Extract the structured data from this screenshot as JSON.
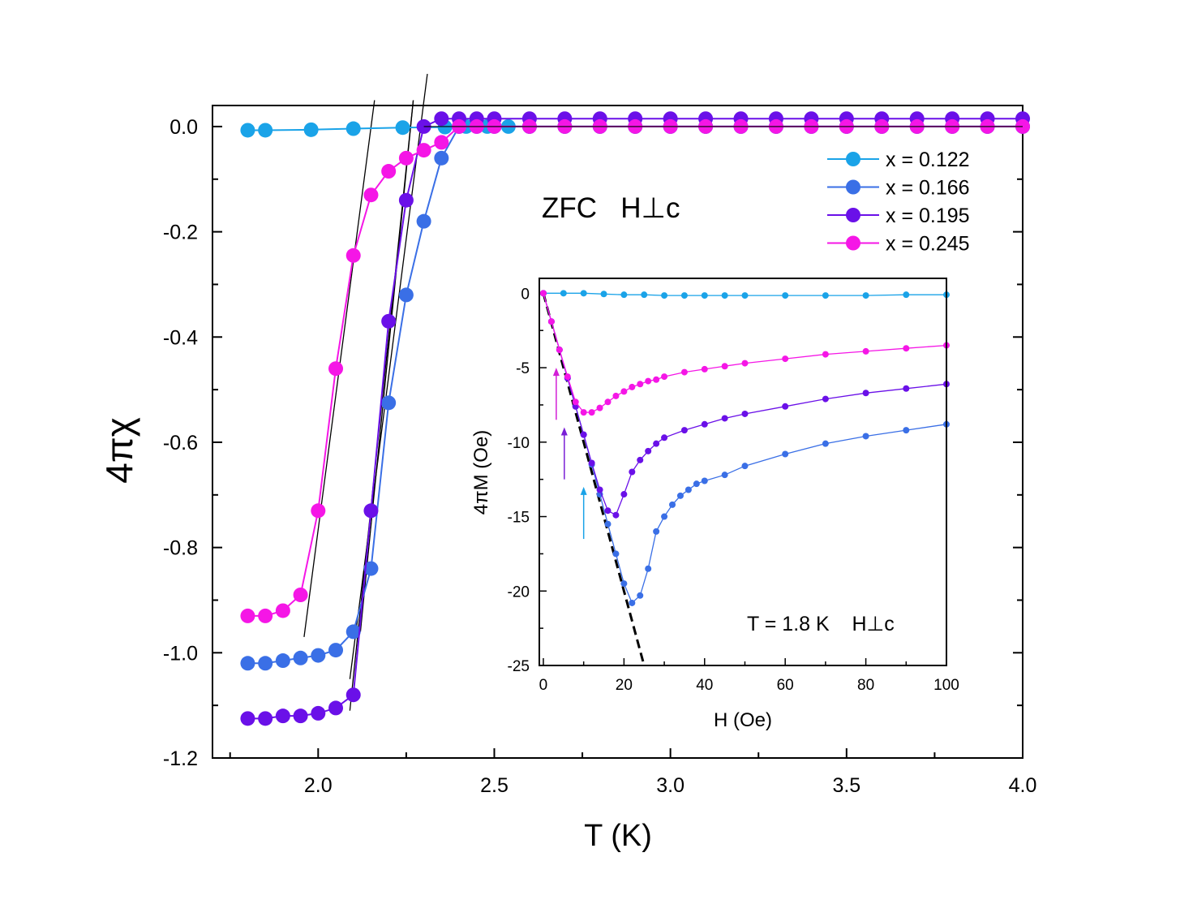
{
  "chart_data": [
    {
      "type": "line",
      "xlabel": "T (K)",
      "ylabel": "4πχ",
      "xlim": [
        1.7,
        4.0
      ],
      "ylim": [
        -1.2,
        0.04
      ],
      "xticks": [
        "2.0",
        "2.5",
        "3.0",
        "3.5",
        "4.0"
      ],
      "yticks": [
        "0.0",
        "-0.2",
        "-0.4",
        "-0.6",
        "-0.8",
        "-1.0",
        "-1.2"
      ],
      "annotation": "ZFC   H⊥c",
      "legend": "top-right",
      "series": [
        {
          "name": "x = 0.122",
          "color": "#1aa3e8",
          "x": [
            1.8,
            1.85,
            1.98,
            2.1,
            2.24,
            2.36,
            2.42,
            2.48,
            2.54,
            2.6,
            2.7,
            2.8,
            2.9,
            3.0,
            3.1,
            3.2,
            3.3,
            3.4,
            3.5,
            3.6,
            3.7,
            3.8,
            3.9,
            4.0
          ],
          "y": [
            -0.007,
            -0.007,
            -0.006,
            -0.004,
            -0.002,
            -0.001,
            0.0,
            0.0,
            0.0,
            0.0,
            0.0,
            0.0,
            0.0,
            0.0,
            0.0,
            0.0,
            0.0,
            0.0,
            0.0,
            0.0,
            0.0,
            0.0,
            0.0,
            0.0
          ]
        },
        {
          "name": "x = 0.166",
          "color": "#3a6fe6",
          "x": [
            1.8,
            1.85,
            1.9,
            1.95,
            2.0,
            2.05,
            2.1,
            2.15,
            2.2,
            2.25,
            2.3,
            2.35,
            2.4,
            2.45,
            2.5,
            2.6,
            2.7,
            2.8,
            2.9,
            3.0,
            3.1,
            3.2,
            3.3,
            3.4,
            3.5,
            3.6,
            3.7,
            3.8,
            3.9,
            4.0
          ],
          "y": [
            -1.02,
            -1.02,
            -1.015,
            -1.01,
            -1.005,
            -0.995,
            -0.96,
            -0.84,
            -0.525,
            -0.32,
            -0.18,
            -0.06,
            0.0,
            0.0,
            0.0,
            0.0,
            0.0,
            0.0,
            0.0,
            0.0,
            0.0,
            0.0,
            0.0,
            0.0,
            0.0,
            0.0,
            0.0,
            0.0,
            0.0,
            0.0
          ]
        },
        {
          "name": "x = 0.195",
          "color": "#6a10e8",
          "x": [
            1.8,
            1.85,
            1.9,
            1.95,
            2.0,
            2.05,
            2.1,
            2.15,
            2.2,
            2.25,
            2.3,
            2.35,
            2.4,
            2.45,
            2.5,
            2.6,
            2.7,
            2.8,
            2.9,
            3.0,
            3.1,
            3.2,
            3.3,
            3.4,
            3.5,
            3.6,
            3.7,
            3.8,
            3.9,
            4.0
          ],
          "y": [
            -1.125,
            -1.125,
            -1.12,
            -1.12,
            -1.115,
            -1.105,
            -1.08,
            -0.73,
            -0.37,
            -0.14,
            0.0,
            0.015,
            0.015,
            0.015,
            0.015,
            0.015,
            0.015,
            0.015,
            0.015,
            0.015,
            0.015,
            0.015,
            0.015,
            0.015,
            0.015,
            0.015,
            0.015,
            0.015,
            0.015,
            0.015
          ]
        },
        {
          "name": "x = 0.245",
          "color": "#f516e6",
          "x": [
            1.8,
            1.85,
            1.9,
            1.95,
            2.0,
            2.05,
            2.1,
            2.15,
            2.2,
            2.25,
            2.3,
            2.35,
            2.4,
            2.45,
            2.5,
            2.6,
            2.7,
            2.8,
            2.9,
            3.0,
            3.1,
            3.2,
            3.3,
            3.4,
            3.5,
            3.6,
            3.7,
            3.8,
            3.9,
            4.0
          ],
          "y": [
            -0.93,
            -0.93,
            -0.92,
            -0.89,
            -0.73,
            -0.46,
            -0.245,
            -0.13,
            -0.085,
            -0.06,
            -0.045,
            -0.03,
            0.0,
            0.0,
            0.0,
            0.0,
            0.0,
            0.0,
            0.0,
            0.0,
            0.0,
            0.0,
            0.0,
            0.0,
            0.0,
            0.0,
            0.0,
            0.0,
            0.0,
            0.0
          ]
        }
      ],
      "guide_lines": [
        {
          "x": [
            1.96,
            2.16
          ],
          "y": [
            -0.97,
            0.05
          ],
          "color": "#000000"
        },
        {
          "x": [
            2.09,
            2.27
          ],
          "y": [
            -1.11,
            0.05
          ],
          "color": "#000000"
        },
        {
          "x": [
            2.12,
            2.27
          ],
          "y": [
            -0.96,
            0.05
          ],
          "color": "#000000"
        },
        {
          "x": [
            2.09,
            2.31
          ],
          "y": [
            -1.05,
            0.1
          ],
          "color": "#000000"
        }
      ]
    },
    {
      "type": "line",
      "xlabel": "H (Oe)",
      "ylabel": "4πM (Oe)",
      "xlim": [
        -1,
        100
      ],
      "ylim": [
        -25,
        1
      ],
      "xticks": [
        "0",
        "20",
        "40",
        "60",
        "80",
        "100"
      ],
      "yticks": [
        "0",
        "-5",
        "-10",
        "-15",
        "-20",
        "-25"
      ],
      "annotation": "T = 1.8 K    H⊥c",
      "series": [
        {
          "name": "x = 0.122",
          "color": "#1aa3e8",
          "x": [
            0,
            5,
            10,
            15,
            20,
            25,
            30,
            35,
            40,
            45,
            50,
            60,
            70,
            80,
            90,
            100
          ],
          "y": [
            0.0,
            0.0,
            0.0,
            -0.05,
            -0.1,
            -0.1,
            -0.15,
            -0.15,
            -0.15,
            -0.15,
            -0.15,
            -0.15,
            -0.15,
            -0.15,
            -0.1,
            -0.1
          ]
        },
        {
          "name": "x = 0.166",
          "color": "#3a6fe6",
          "x": [
            0,
            2,
            4,
            6,
            8,
            10,
            12,
            14,
            16,
            18,
            20,
            22,
            24,
            26,
            28,
            30,
            32,
            34,
            36,
            38,
            40,
            45,
            50,
            60,
            70,
            80,
            90,
            100
          ],
          "y": [
            0.0,
            -1.9,
            -3.8,
            -5.7,
            -7.6,
            -9.5,
            -11.5,
            -13.5,
            -15.5,
            -17.5,
            -19.5,
            -20.8,
            -20.3,
            -18.5,
            -16.0,
            -15.0,
            -14.2,
            -13.6,
            -13.2,
            -12.8,
            -12.6,
            -12.2,
            -11.6,
            -10.8,
            -10.1,
            -9.6,
            -9.2,
            -8.8
          ]
        },
        {
          "name": "x = 0.195",
          "color": "#6a10e8",
          "x": [
            0,
            2,
            4,
            6,
            8,
            10,
            12,
            14,
            16,
            18,
            20,
            22,
            24,
            26,
            28,
            30,
            35,
            40,
            45,
            50,
            60,
            70,
            80,
            90,
            100
          ],
          "y": [
            0.0,
            -1.9,
            -3.8,
            -5.7,
            -7.6,
            -9.5,
            -11.4,
            -13.2,
            -14.6,
            -14.9,
            -13.5,
            -12.0,
            -11.2,
            -10.6,
            -10.1,
            -9.7,
            -9.2,
            -8.8,
            -8.4,
            -8.1,
            -7.6,
            -7.1,
            -6.7,
            -6.4,
            -6.1
          ]
        },
        {
          "name": "x = 0.245",
          "color": "#f516e6",
          "x": [
            0,
            2,
            4,
            6,
            8,
            10,
            12,
            14,
            16,
            18,
            20,
            22,
            24,
            26,
            28,
            30,
            35,
            40,
            45,
            50,
            60,
            70,
            80,
            90,
            100
          ],
          "y": [
            0.0,
            -1.9,
            -3.8,
            -5.6,
            -7.3,
            -8.0,
            -8.0,
            -7.7,
            -7.3,
            -6.9,
            -6.6,
            -6.3,
            -6.1,
            -5.9,
            -5.8,
            -5.6,
            -5.3,
            -5.1,
            -4.9,
            -4.7,
            -4.4,
            -4.1,
            -3.9,
            -3.7,
            -3.5
          ]
        }
      ],
      "guide_lines": [
        {
          "x": [
            0,
            25
          ],
          "y": [
            0,
            -25
          ],
          "color": "#000000"
        }
      ],
      "arrows": [
        {
          "x": 3.2,
          "y_from": -8.5,
          "y_to": -5.0,
          "color": "#d21fd6"
        },
        {
          "x": 5.2,
          "y_from": -12.5,
          "y_to": -9.0,
          "color": "#7a1fd6"
        },
        {
          "x": 10.0,
          "y_from": -16.5,
          "y_to": -13.0,
          "color": "#1aa3e8"
        }
      ]
    }
  ]
}
